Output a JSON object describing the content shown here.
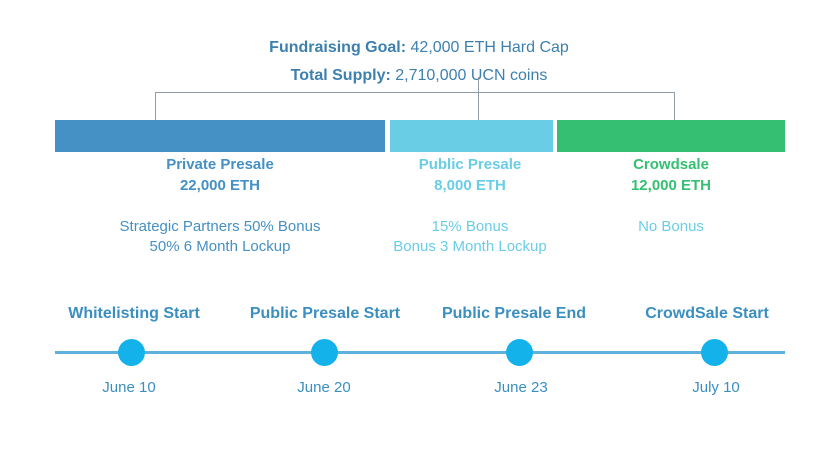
{
  "colors": {
    "heading": "#3d80ae",
    "private": "#4590c4",
    "public": "#69cde6",
    "crowdsale": "#35bf72",
    "timeline_dark": "#3b8fc0",
    "timeline_light": "#5fb1dd",
    "dot": "#14b2ea",
    "bracket": "#8f9ba5"
  },
  "header": {
    "goal_label": "Fundraising Goal:",
    "goal_value": "42,000 ETH Hard Cap",
    "supply_label": "Total Supply:",
    "supply_value": "2,710,000 UCN coins"
  },
  "allocations": [
    {
      "name": "Private Presale",
      "amount": "22,000 ETH",
      "notes": [
        "Strategic Partners 50% Bonus",
        "50% 6 Month Lockup"
      ]
    },
    {
      "name": "Public Presale",
      "amount": "8,000 ETH",
      "notes": [
        "15% Bonus",
        "Bonus 3 Month Lockup"
      ]
    },
    {
      "name": "Crowdsale",
      "amount": "12,000 ETH",
      "notes": [
        "No Bonus"
      ]
    }
  ],
  "timeline": [
    {
      "title": "Whitelisting Start",
      "date": "June 10"
    },
    {
      "title": "Public Presale Start",
      "date": "June 20"
    },
    {
      "title": "Public Presale End",
      "date": "June 23"
    },
    {
      "title": "CrowdSale Start",
      "date": "July 10"
    }
  ]
}
